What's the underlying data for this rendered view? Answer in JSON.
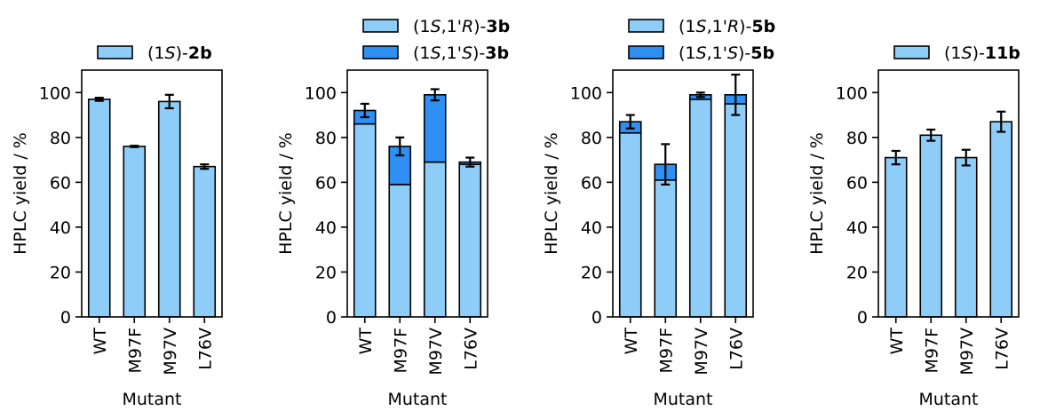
{
  "colors": {
    "light_bar": "#8ecdf7",
    "dark_bar": "#2f8ff2",
    "edge": "#000000"
  },
  "chart_data": [
    {
      "type": "bar",
      "stacked": true,
      "categories": [
        "WT",
        "M97F",
        "M97V",
        "L76V"
      ],
      "xlabel": "Mutant",
      "ylabel": "HPLC yield / %",
      "ylim": [
        0,
        110
      ],
      "yticks": [
        "0",
        "20",
        "40",
        "60",
        "80",
        "100"
      ],
      "legend": [
        {
          "pre": "(1",
          "it1": "S",
          "mid": ")-",
          "it2": "",
          "mid2": "",
          "bold": "2b",
          "color_key": "light_bar"
        }
      ],
      "series": [
        {
          "name": "(1S)-2b",
          "color_key": "light_bar",
          "values": [
            97,
            76,
            96,
            67
          ]
        }
      ],
      "errors": [
        0.7,
        0.3,
        3,
        1
      ]
    },
    {
      "type": "bar",
      "stacked": true,
      "categories": [
        "WT",
        "M97F",
        "M97V",
        "L76V"
      ],
      "xlabel": "Mutant",
      "ylabel": "HPLC yield / %",
      "ylim": [
        0,
        110
      ],
      "yticks": [
        "0",
        "20",
        "40",
        "60",
        "80",
        "100"
      ],
      "legend": [
        {
          "pre": "(1",
          "it1": "S",
          "mid": ",1'",
          "it2": "R",
          "mid2": ")-",
          "bold": "3b",
          "color_key": "light_bar"
        },
        {
          "pre": "(1",
          "it1": "S",
          "mid": ",1'",
          "it2": "S",
          "mid2": ")-",
          "bold": "3b",
          "color_key": "dark_bar"
        }
      ],
      "series": [
        {
          "name": "(1S,1'R)-3b",
          "color_key": "light_bar",
          "values": [
            86,
            59,
            69,
            68
          ]
        },
        {
          "name": "(1S,1'S)-3b",
          "color_key": "dark_bar",
          "values": [
            6,
            17,
            30,
            1
          ]
        }
      ],
      "errors": [
        3,
        4,
        2.5,
        2
      ]
    },
    {
      "type": "bar",
      "stacked": true,
      "categories": [
        "WT",
        "M97F",
        "M97V",
        "L76V"
      ],
      "xlabel": "Mutant",
      "ylabel": "HPLC yield / %",
      "ylim": [
        0,
        110
      ],
      "yticks": [
        "0",
        "20",
        "40",
        "60",
        "80",
        "100"
      ],
      "legend": [
        {
          "pre": "(1",
          "it1": "S",
          "mid": ",1'",
          "it2": "R",
          "mid2": ")-",
          "bold": "5b",
          "color_key": "light_bar"
        },
        {
          "pre": "(1",
          "it1": "S",
          "mid": ",1'",
          "it2": "S",
          "mid2": ")-",
          "bold": "5b",
          "color_key": "dark_bar"
        }
      ],
      "series": [
        {
          "name": "(1S,1'R)-5b",
          "color_key": "light_bar",
          "values": [
            82,
            61,
            97,
            95
          ]
        },
        {
          "name": "(1S,1'S)-5b",
          "color_key": "dark_bar",
          "values": [
            5,
            7,
            2,
            4
          ]
        }
      ],
      "errors": [
        3,
        9,
        1,
        9
      ]
    },
    {
      "type": "bar",
      "stacked": true,
      "categories": [
        "WT",
        "M97F",
        "M97V",
        "L76V"
      ],
      "xlabel": "Mutant",
      "ylabel": "HPLC yield / %",
      "ylim": [
        0,
        110
      ],
      "yticks": [
        "0",
        "20",
        "40",
        "60",
        "80",
        "100"
      ],
      "legend": [
        {
          "pre": "(1",
          "it1": "S",
          "mid": ")-",
          "it2": "",
          "mid2": "",
          "bold": "11b",
          "color_key": "light_bar"
        }
      ],
      "series": [
        {
          "name": "(1S)-11b",
          "color_key": "light_bar",
          "values": [
            71,
            81,
            71,
            87
          ]
        }
      ],
      "errors": [
        3,
        2.5,
        3.5,
        4.5
      ]
    }
  ]
}
